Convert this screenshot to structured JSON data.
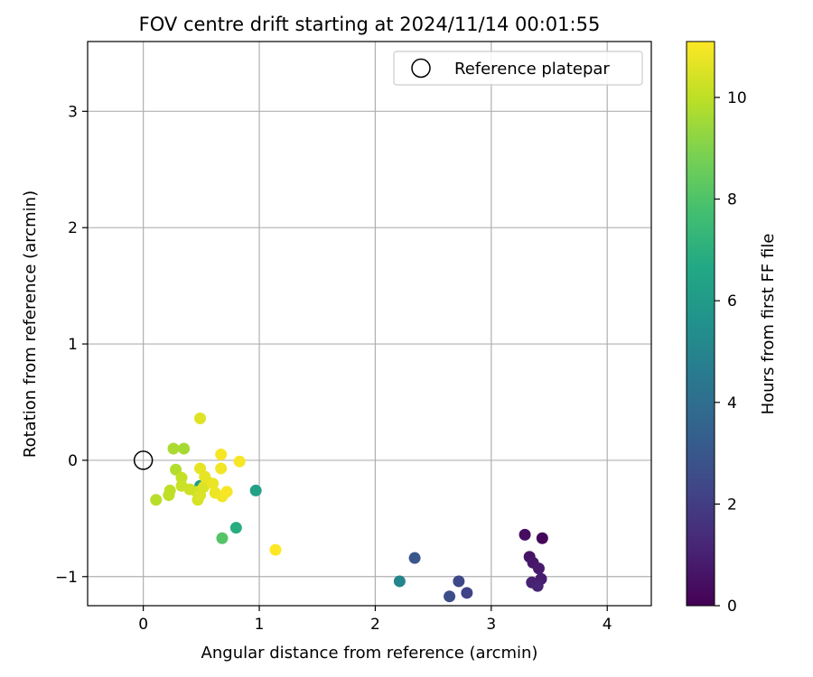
{
  "chart_data": {
    "type": "scatter",
    "title": "FOV centre drift starting at 2024/11/14 00:01:55",
    "xlabel": "Angular distance from reference (arcmin)",
    "ylabel": "Rotation from reference (arcmin)",
    "xlim": [
      -0.48,
      4.38
    ],
    "ylim": [
      -1.25,
      3.6
    ],
    "xticks": [
      0,
      1,
      2,
      3,
      4
    ],
    "yticks": [
      -1,
      0,
      1,
      2,
      3
    ],
    "xtick_labels": [
      "0",
      "1",
      "2",
      "3",
      "4"
    ],
    "ytick_labels": [
      "−1",
      "0",
      "1",
      "2",
      "3"
    ],
    "grid": true,
    "legend": {
      "position": "top-right",
      "entries": [
        {
          "label": "Reference platepar",
          "marker": "open-circle"
        }
      ]
    },
    "reference_point": {
      "x": 0,
      "y": 0
    },
    "colorbar": {
      "label": "Hours from first FF file",
      "colormap": "viridis",
      "range": [
        0,
        11.1
      ],
      "ticks": [
        0,
        2,
        4,
        6,
        8,
        10
      ],
      "tick_labels": [
        "0",
        "2",
        "4",
        "6",
        "8",
        "10"
      ]
    },
    "points": [
      {
        "x": 3.44,
        "y": -0.67,
        "hours": 0.2
      },
      {
        "x": 3.29,
        "y": -0.64,
        "hours": 0.4
      },
      {
        "x": 3.33,
        "y": -0.83,
        "hours": 0.6
      },
      {
        "x": 3.36,
        "y": -0.88,
        "hours": 0.7
      },
      {
        "x": 3.41,
        "y": -0.93,
        "hours": 0.8
      },
      {
        "x": 3.43,
        "y": -1.02,
        "hours": 0.9
      },
      {
        "x": 3.35,
        "y": -1.05,
        "hours": 1.0
      },
      {
        "x": 3.4,
        "y": -1.08,
        "hours": 1.1
      },
      {
        "x": 2.79,
        "y": -1.14,
        "hours": 2.2
      },
      {
        "x": 2.72,
        "y": -1.04,
        "hours": 2.4
      },
      {
        "x": 2.64,
        "y": -1.17,
        "hours": 2.6
      },
      {
        "x": 2.34,
        "y": -0.84,
        "hours": 3.0
      },
      {
        "x": 2.21,
        "y": -1.04,
        "hours": 5.0
      },
      {
        "x": 0.97,
        "y": -0.26,
        "hours": 6.3
      },
      {
        "x": 0.8,
        "y": -0.58,
        "hours": 6.9
      },
      {
        "x": 0.49,
        "y": -0.22,
        "hours": 6.1
      },
      {
        "x": 0.68,
        "y": -0.67,
        "hours": 8.1
      },
      {
        "x": 0.35,
        "y": 0.1,
        "hours": 9.6
      },
      {
        "x": 0.26,
        "y": 0.1,
        "hours": 9.7
      },
      {
        "x": 0.28,
        "y": -0.08,
        "hours": 9.8
      },
      {
        "x": 0.11,
        "y": -0.34,
        "hours": 9.9
      },
      {
        "x": 0.22,
        "y": -0.3,
        "hours": 10.0
      },
      {
        "x": 0.23,
        "y": -0.26,
        "hours": 10.0
      },
      {
        "x": 0.33,
        "y": -0.15,
        "hours": 10.1
      },
      {
        "x": 0.33,
        "y": -0.22,
        "hours": 10.2
      },
      {
        "x": 0.4,
        "y": -0.25,
        "hours": 10.3
      },
      {
        "x": 0.46,
        "y": -0.27,
        "hours": 10.3
      },
      {
        "x": 0.47,
        "y": -0.34,
        "hours": 10.4
      },
      {
        "x": 0.49,
        "y": -0.3,
        "hours": 10.5
      },
      {
        "x": 0.52,
        "y": -0.23,
        "hours": 10.5
      },
      {
        "x": 0.55,
        "y": -0.18,
        "hours": 10.6
      },
      {
        "x": 0.49,
        "y": 0.36,
        "hours": 10.6
      },
      {
        "x": 0.49,
        "y": -0.07,
        "hours": 10.7
      },
      {
        "x": 0.53,
        "y": -0.14,
        "hours": 10.7
      },
      {
        "x": 0.6,
        "y": -0.2,
        "hours": 10.8
      },
      {
        "x": 0.62,
        "y": -0.28,
        "hours": 10.8
      },
      {
        "x": 0.67,
        "y": -0.07,
        "hours": 10.9
      },
      {
        "x": 0.68,
        "y": -0.31,
        "hours": 10.9
      },
      {
        "x": 0.72,
        "y": -0.27,
        "hours": 11.0
      },
      {
        "x": 0.67,
        "y": 0.05,
        "hours": 11.0
      },
      {
        "x": 0.83,
        "y": -0.01,
        "hours": 11.0
      },
      {
        "x": 1.14,
        "y": -0.77,
        "hours": 11.1
      }
    ]
  }
}
